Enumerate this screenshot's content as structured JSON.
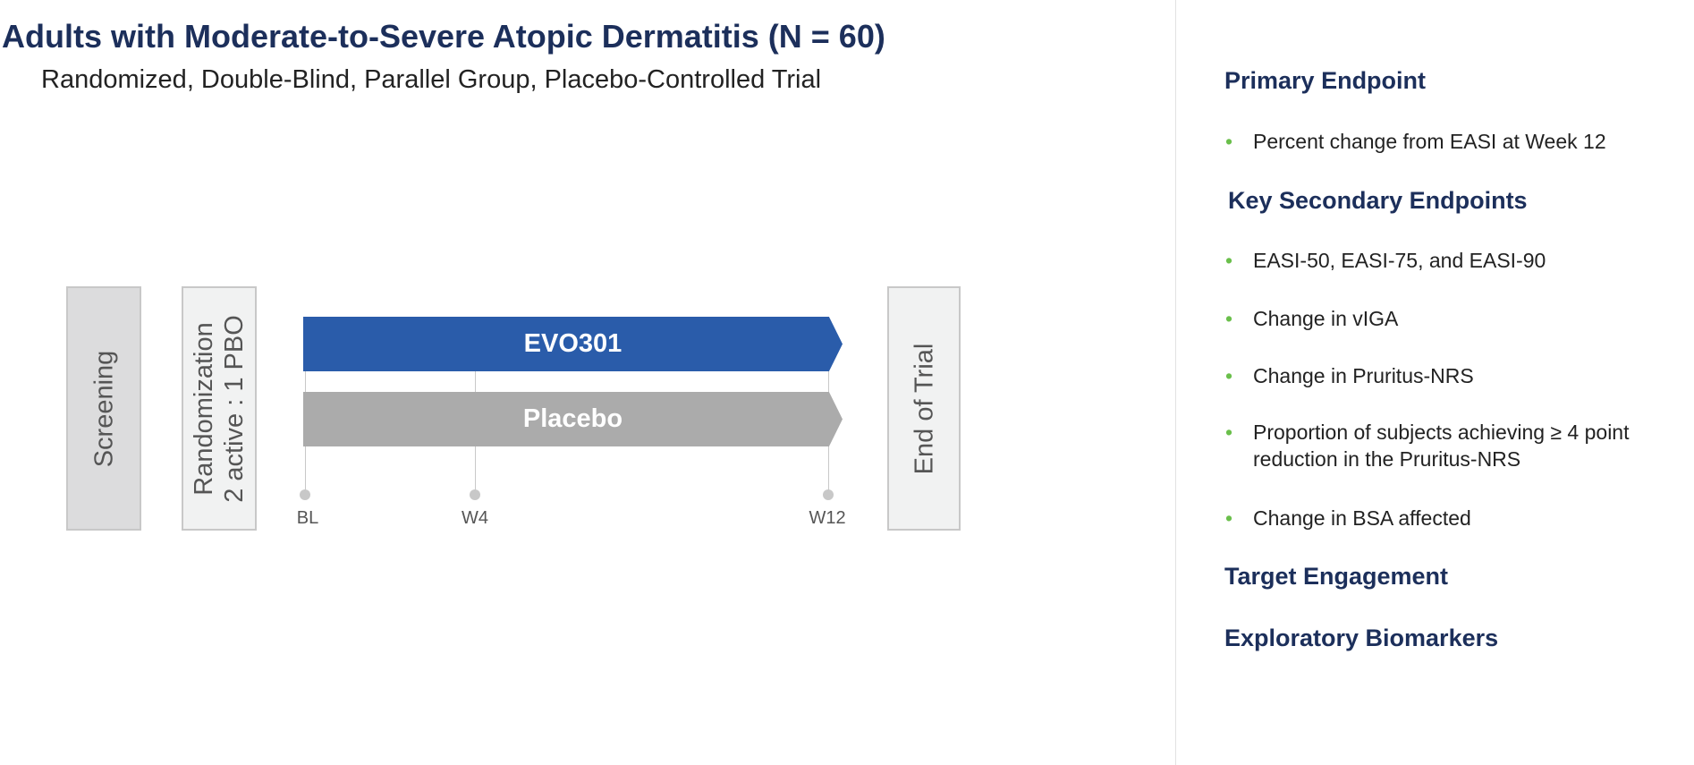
{
  "title": "Adults with Moderate-to-Severe Atopic Dermatitis (N = 60)",
  "subtitle": "Randomized, Double-Blind, Parallel Group, Placebo-Controlled Trial",
  "diagram": {
    "screening": "Screening",
    "randomization_line1": "Randomization",
    "randomization_line2": "2 active : 1 PBO",
    "arms": [
      {
        "label": "EVO301",
        "color": "#2a5caa"
      },
      {
        "label": "Placebo",
        "color": "#ababab"
      }
    ],
    "timepoints": [
      "BL",
      "W4",
      "W12"
    ],
    "end": "End of Trial"
  },
  "endpoints": {
    "primary_heading": "Primary Endpoint",
    "primary": [
      "Percent change from EASI at Week 12"
    ],
    "secondary_heading": "Key Secondary Endpoints",
    "secondary": [
      "EASI-50, EASI-75, and EASI-90",
      "Change in vIGA",
      "Change in Pruritus-NRS",
      "Proportion of subjects achieving ≥ 4 point",
      "reduction in the Pruritus-NRS",
      "Change in BSA affected"
    ],
    "target_heading": "Target Engagement",
    "exploratory_heading": "Exploratory Biomarkers"
  },
  "colors": {
    "heading": "#1c2f5b",
    "bullet": "#6abf4b"
  }
}
